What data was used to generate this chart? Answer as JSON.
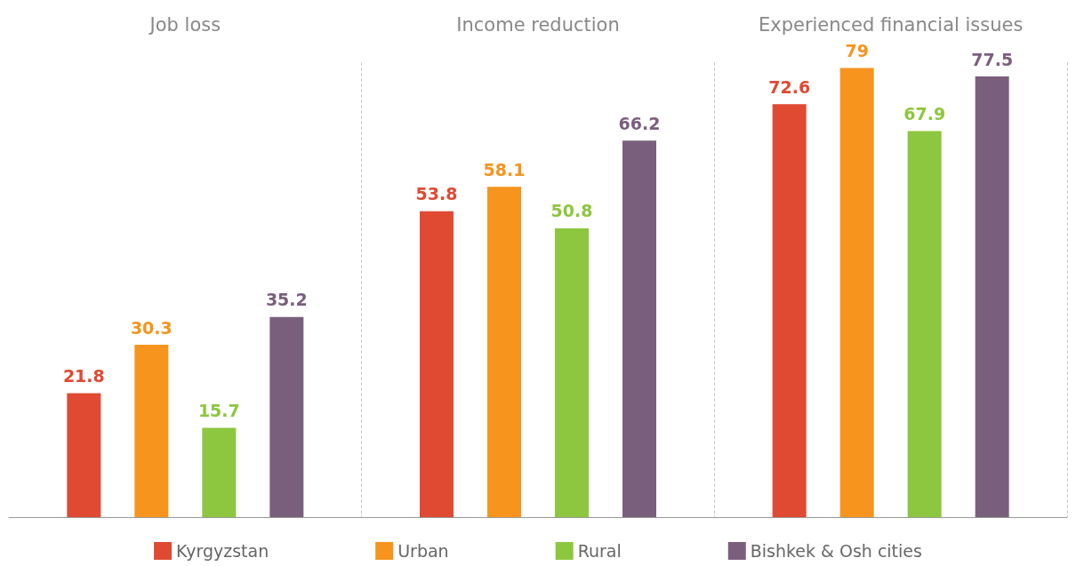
{
  "chart_data": {
    "type": "bar",
    "categories": [
      "Job loss",
      "Income reduction",
      "Experienced financial issues"
    ],
    "series": [
      {
        "name": "Kyrgyzstan",
        "color": "#e04a33",
        "values": [
          21.8,
          53.8,
          72.6
        ]
      },
      {
        "name": "Urban",
        "color": "#f7941d",
        "values": [
          30.3,
          58.1,
          79
        ]
      },
      {
        "name": "Rural",
        "color": "#8dc63f",
        "values": [
          15.7,
          50.8,
          67.9
        ]
      },
      {
        "name": "Bishkek & Osh cities",
        "color": "#7a5f7d",
        "values": [
          35.2,
          66.2,
          77.5
        ]
      }
    ],
    "data_labels": true,
    "grid": "x",
    "legend": "bottom"
  }
}
